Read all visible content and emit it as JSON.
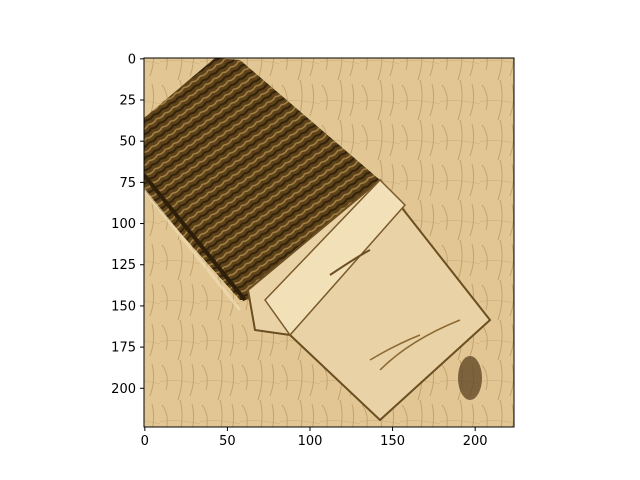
{
  "chart_data": {
    "type": "heatmap",
    "title": "",
    "xlabel": "",
    "ylabel": "",
    "xlim": [
      0,
      224
    ],
    "ylim": [
      224,
      0
    ],
    "x_ticks": [
      0,
      50,
      100,
      150,
      200
    ],
    "y_ticks": [
      0,
      25,
      50,
      75,
      100,
      125,
      150,
      175,
      200
    ],
    "x_tick_labels": [
      "0",
      "50",
      "100",
      "150",
      "200"
    ],
    "y_tick_labels": [
      "0",
      "25",
      "50",
      "75",
      "100",
      "125",
      "150",
      "175",
      "200"
    ],
    "grid": false,
    "image_description_colors": {
      "background_tan": "#e2c795",
      "light_cream": "#efdcb2",
      "dark_weave": "#4a3312",
      "mid_brown": "#a07a3c"
    }
  }
}
